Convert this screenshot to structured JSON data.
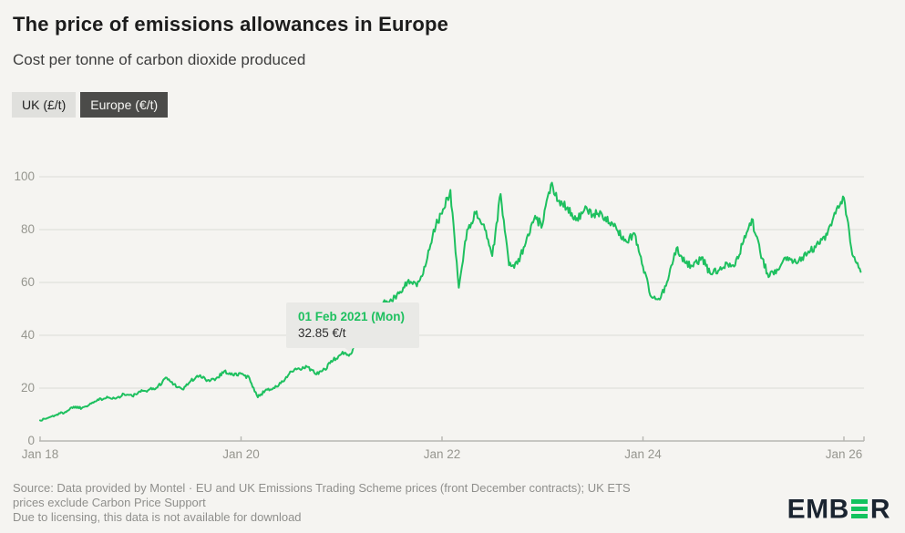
{
  "header": {
    "title": "The price of emissions allowances in Europe",
    "subtitle": "Cost per tonne of carbon dioxide produced"
  },
  "toggles": [
    {
      "label": "UK (£/t)",
      "selected": false
    },
    {
      "label": "Europe (€/t)",
      "selected": true
    }
  ],
  "tooltip": {
    "date": "01 Feb 2021 (Mon)",
    "value": "32.85 €/t"
  },
  "footer": {
    "source_lines": [
      "Source: Data provided by Montel · EU and UK Emissions Trading Scheme prices (front December contracts); UK ETS",
      "prices exclude Carbon Price Support"
    ],
    "license_line": "Due to licensing, this data is not available for download",
    "logo_left": "EMB",
    "logo_right": "R"
  },
  "colors": {
    "series_green": "#1ec05f",
    "grid": "#dbdbd8",
    "axis": "#b6b6b2",
    "tooltip_bg": "#e9e9e6"
  },
  "chart_data": {
    "type": "line",
    "title": "The price of emissions allowances in Europe",
    "subtitle": "Cost per tonne of carbon dioxide produced",
    "ylabel": "€/t",
    "ylim": [
      0,
      100
    ],
    "y_ticks": [
      0,
      20,
      40,
      60,
      80,
      100
    ],
    "x_tick_labels": [
      "Jan 18",
      "Jan 20",
      "Jan 22",
      "Jan 24",
      "Jan 26"
    ],
    "x_tick_months": [
      0,
      24,
      48,
      72,
      96
    ],
    "grid": "horizontal",
    "legend_position": "none",
    "highlight_point": {
      "date": "01 Feb 2021 (Mon)",
      "value": 32.85,
      "unit": "€/t",
      "month_index": 37
    },
    "series": [
      {
        "name": "Europe (€/t)",
        "unit": "€/t",
        "start": "Jan 2018",
        "interval": "monthly",
        "values": [
          7.8,
          8.8,
          10.0,
          11.0,
          13.0,
          12.5,
          14.2,
          15.5,
          16.8,
          16.0,
          17.8,
          17.0,
          18.6,
          19.4,
          20.2,
          24.0,
          21.5,
          19.5,
          22.8,
          24.6,
          23.0,
          23.6,
          26.4,
          25.0,
          25.4,
          23.8,
          16.5,
          19.5,
          20.0,
          22.5,
          26.3,
          27.2,
          28.0,
          25.2,
          27.2,
          30.5,
          33.0,
          32.85,
          38.5,
          42.5,
          48.0,
          52.5,
          53.0,
          56.5,
          61.0,
          58.5,
          66.0,
          80.0,
          86.0,
          95.0,
          58.0,
          80.0,
          86.0,
          82.0,
          70.0,
          93.5,
          66.5,
          67.0,
          75.0,
          84.0,
          82.0,
          97.0,
          91.0,
          88.5,
          83.5,
          87.5,
          85.5,
          86.5,
          82.5,
          79.5,
          75.5,
          78.5,
          66.0,
          54.5,
          53.5,
          61.0,
          73.0,
          67.5,
          66.0,
          69.5,
          63.5,
          64.5,
          67.5,
          66.5,
          75.5,
          84.0,
          71.5,
          62.0,
          65.0,
          69.5,
          68.0,
          69.5,
          72.0,
          74.5,
          78.0,
          86.0,
          92.0,
          70.5,
          64.0
        ]
      }
    ]
  }
}
